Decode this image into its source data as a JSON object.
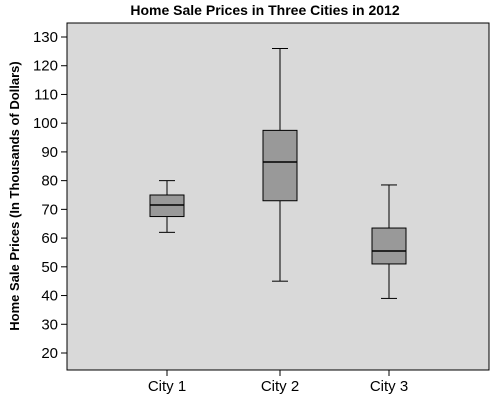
{
  "chart_data": {
    "type": "boxplot",
    "title": "Home Sale Prices in Three Cities in 2012",
    "xlabel": "",
    "ylabel": "Home Sale Prices (In Thousands of Dollars)",
    "ylim": [
      15,
      135
    ],
    "yticks": [
      20,
      30,
      40,
      50,
      60,
      70,
      80,
      90,
      100,
      110,
      120,
      130
    ],
    "categories": [
      "City 1",
      "City 2",
      "City 3"
    ],
    "boxes": [
      {
        "category": "City 1",
        "min": 62,
        "q1": 67.5,
        "median": 71.5,
        "q3": 75,
        "max": 80
      },
      {
        "category": "City 2",
        "min": 45,
        "q1": 73,
        "median": 86.5,
        "q3": 97.5,
        "max": 126
      },
      {
        "category": "City 3",
        "min": 39,
        "q1": 51,
        "median": 55.5,
        "q3": 63.5,
        "max": 78.5
      }
    ],
    "grid": false,
    "colors": {
      "plot_background": "#d9d9d9",
      "box_fill": "#999999",
      "line": "#000000"
    }
  }
}
